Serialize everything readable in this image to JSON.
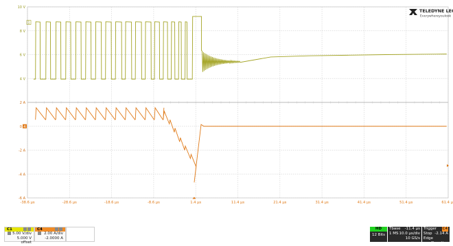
{
  "brand": {
    "name": "TELEDYNE LECROY",
    "tagline": "Everywhereyoulook"
  },
  "chart_data": {
    "type": "line",
    "title": "",
    "xlabel": "",
    "ylabel": "",
    "x_unit": "µs",
    "x_ticks": [
      "-38.6 µs",
      "-28.6 µs",
      "-18.6 µs",
      "-8.6 µs",
      "1.4 µs",
      "11.4 µs",
      "21.4 µs",
      "31.4 µs",
      "41.4 µs",
      "51.4 µs",
      "61.4 µs"
    ],
    "xlim": [
      -43.6,
      66.4
    ],
    "trigger_time": 0,
    "grid": true,
    "panels": [
      {
        "channel": "C1",
        "marker": "1",
        "color": "#a4a425",
        "y_ticks": [
          "10 V",
          "8 V",
          "6 V",
          "4 V"
        ],
        "y_values": [
          10,
          8,
          6,
          4
        ],
        "ylim": [
          2,
          10
        ],
        "waveform": {
          "description_free_data": true,
          "pulse_segment": {
            "x_start": -41.5,
            "x_end": 0.0,
            "low": 3.95,
            "high": 8.75
          },
          "wide_pulse": {
            "x_start": -0.5,
            "x_end": 1.9,
            "high": 9.2
          },
          "ringing": {
            "x_start": 1.9,
            "x_end": 12.0,
            "settle": 5.4
          },
          "settle_curve": [
            [
              2,
              4.0
            ],
            [
              5,
              5.1
            ],
            [
              10,
              5.5
            ],
            [
              20,
              5.8
            ],
            [
              30,
              5.9
            ],
            [
              40,
              5.95
            ],
            [
              50,
              6.0
            ],
            [
              60,
              6.03
            ],
            [
              66,
              6.05
            ]
          ],
          "pulse_periods": [
            {
              "t": -41.5,
              "w": 1.2
            },
            {
              "t": -38.8,
              "w": 1.2
            },
            {
              "t": -36.2,
              "w": 1.3
            },
            {
              "t": -33.6,
              "w": 1.3
            },
            {
              "t": -31.0,
              "w": 1.4
            },
            {
              "t": -28.4,
              "w": 1.4
            },
            {
              "t": -25.8,
              "w": 1.5
            },
            {
              "t": -23.2,
              "w": 1.5
            },
            {
              "t": -20.6,
              "w": 1.6
            },
            {
              "t": -18.0,
              "w": 1.6
            },
            {
              "t": -15.4,
              "w": 1.6
            },
            {
              "t": -12.8,
              "w": 1.5
            },
            {
              "t": -10.4,
              "w": 1.3
            },
            {
              "t": -8.1,
              "w": 1.1
            },
            {
              "t": -6.0,
              "w": 0.9
            },
            {
              "t": -4.1,
              "w": 0.7
            },
            {
              "t": -2.4,
              "w": 0.5
            }
          ]
        }
      },
      {
        "channel": "C4",
        "marker": "4",
        "color": "#e07b1a",
        "y_ticks": [
          "2 A",
          "0 A",
          "-2 A",
          "-4 A",
          "-6 A"
        ],
        "y_values": [
          2,
          0,
          -2,
          -4,
          -6
        ],
        "ylim": [
          -6,
          2
        ],
        "waveform": {
          "sawtooth": {
            "x_start": -41.5,
            "x_end": -8.0,
            "peak": 1.55,
            "trough": 0.55
          },
          "ramp_down": [
            [
              -8.0,
              0.9
            ],
            [
              -6.5,
              0.2
            ],
            [
              -5.2,
              -0.5
            ],
            [
              -3.8,
              -1.3
            ],
            [
              -2.5,
              -2.0
            ],
            [
              -1.0,
              -2.7
            ],
            [
              0.5,
              -3.4
            ],
            [
              0.0,
              -4.7
            ]
          ],
          "recover": [
            [
              0.0,
              -4.7
            ],
            [
              1.8,
              0.15
            ],
            [
              2.5,
              0.0
            ],
            [
              66.0,
              0.0
            ]
          ]
        }
      }
    ]
  },
  "channels": {
    "c1": {
      "name": "C1",
      "line1": "5.00 V/div",
      "line2": "5.000 V offset",
      "color": "#e6e600"
    },
    "c4": {
      "name": "C4",
      "line1": "2.00 A/div",
      "line2": "-2.0000 A",
      "color": "#f08a24"
    }
  },
  "status": {
    "badge_top": "HD",
    "badge_bits": "12 Bits",
    "timebase_label": "Tbase",
    "timebase_value": "-11.4 µs",
    "samples": "1 MS",
    "time_div": "10.0 µs/div",
    "sample_rate": "10 GS/s",
    "trigger_label": "Trigger",
    "trigger_src": "C4",
    "trigger_mode": "Stop",
    "trigger_level": "-2.14 A",
    "trigger_type": "Edge",
    "trigger_slope": "Negative"
  }
}
